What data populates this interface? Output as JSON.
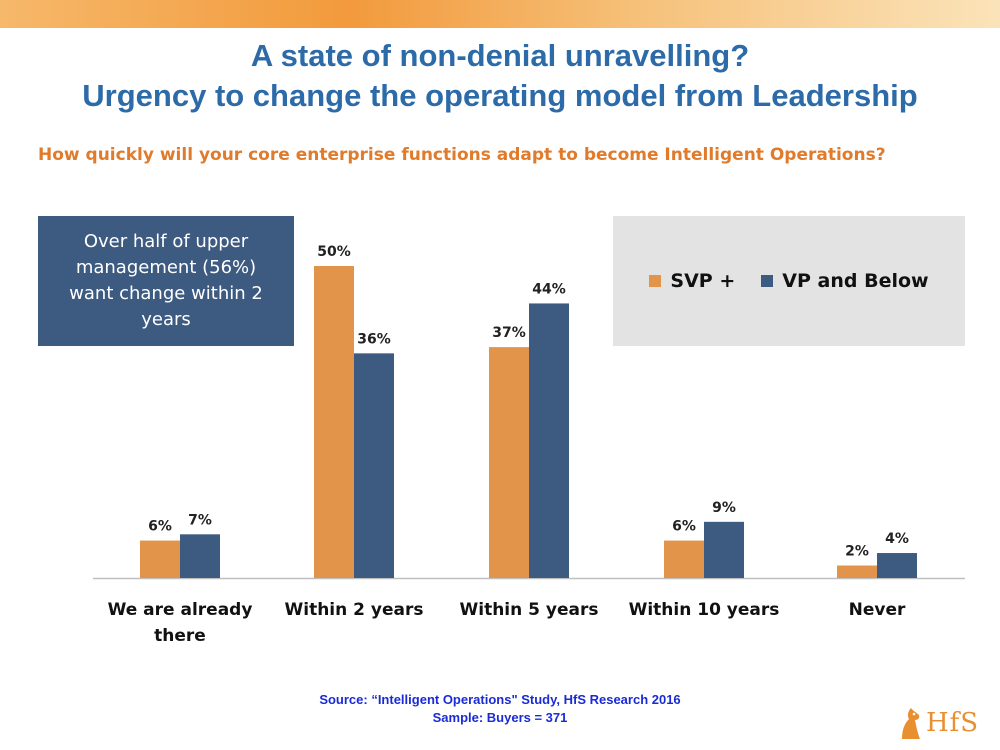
{
  "header": {
    "title_line1": "A state of non-denial unravelling?",
    "title_line2": "Urgency to change the operating model from Leadership",
    "question": "How quickly will your core enterprise functions adapt to become Intelligent Operations?"
  },
  "callout": {
    "text": "Over half of upper management (56%) want change within 2 years"
  },
  "legend": {
    "series1": "SVP +",
    "series2": "VP and Below"
  },
  "colors": {
    "svp": "#e2944a",
    "vp": "#3d5a80",
    "title": "#2c6aa8",
    "question": "#e07b2c",
    "source": "#1a2bd6"
  },
  "chart_data": {
    "type": "bar",
    "categories": [
      "We are already there",
      "Within 2 years",
      "Within 5 years",
      "Within 10 years",
      "Never"
    ],
    "series": [
      {
        "name": "SVP +",
        "values": [
          6,
          50,
          37,
          6,
          2
        ]
      },
      {
        "name": "VP and Below",
        "values": [
          7,
          36,
          44,
          9,
          4
        ]
      }
    ],
    "value_suffix": "%",
    "ylim": [
      0,
      50
    ],
    "grid": false,
    "legend_position": "top-right"
  },
  "footer": {
    "source_line1": "Source: “Intelligent Operations\" Study, HfS Research 2016",
    "source_line2": "Sample: Buyers = 371",
    "logo_text": "HfS"
  }
}
